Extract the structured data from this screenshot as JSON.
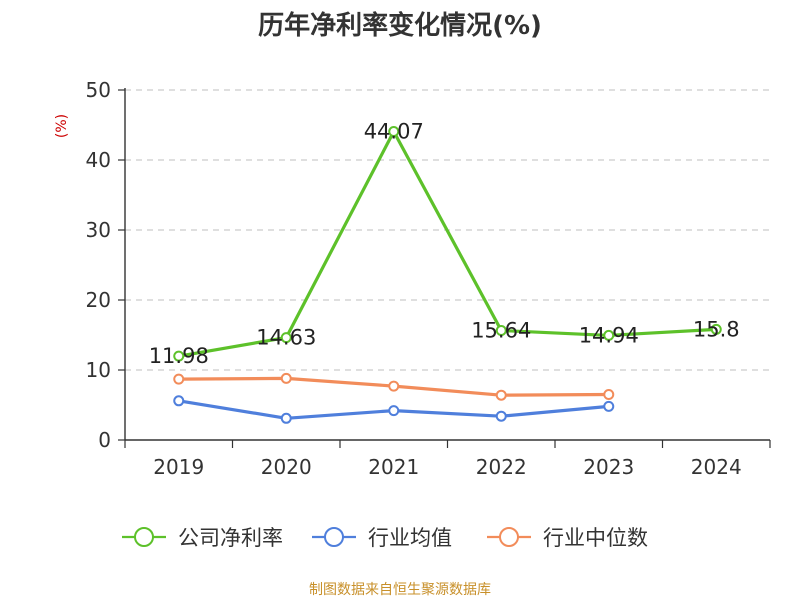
{
  "chart_data": {
    "type": "line",
    "title": "历年净利率变化情况(%)",
    "ylabel": "(%)",
    "xlabel": "",
    "categories": [
      "2019",
      "2020",
      "2021",
      "2022",
      "2023",
      "2024"
    ],
    "ylim": [
      0,
      50
    ],
    "yticks": [
      0,
      10,
      20,
      30,
      40,
      50
    ],
    "grid": true,
    "series": [
      {
        "name": "公司净利率",
        "color": "#5dc12a",
        "values": [
          11.98,
          14.63,
          44.07,
          15.64,
          14.94,
          15.8
        ],
        "labels": [
          "11.98",
          "14.63",
          "44.07",
          "15.64",
          "14.94",
          "15.8"
        ]
      },
      {
        "name": "行业均值",
        "color": "#4f7fdc",
        "values": [
          5.6,
          3.1,
          4.2,
          3.4,
          4.8,
          null
        ]
      },
      {
        "name": "行业中位数",
        "color": "#f28c5a",
        "values": [
          8.7,
          8.8,
          7.7,
          6.4,
          6.5,
          null
        ]
      }
    ],
    "legend_position": "bottom",
    "source": "制图数据来自恒生聚源数据库"
  }
}
